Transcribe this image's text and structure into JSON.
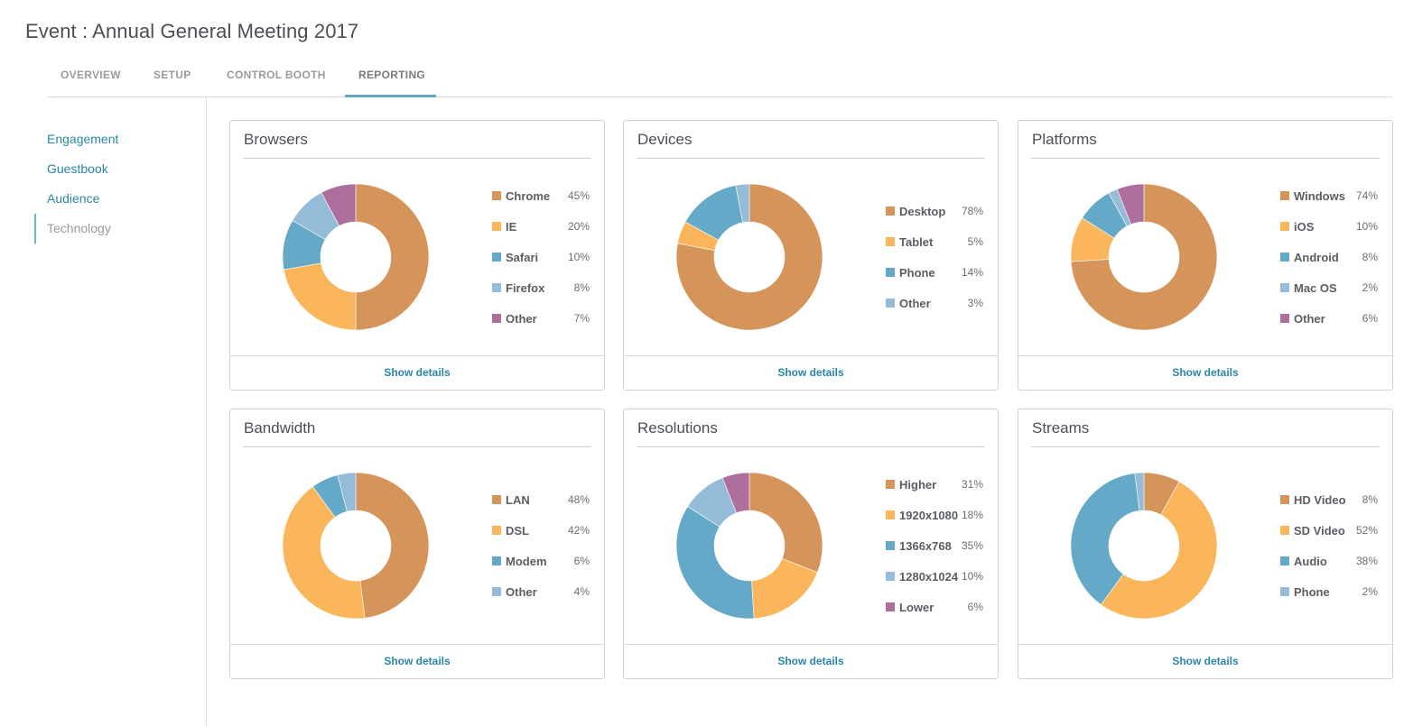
{
  "event_title": "Event : Annual General Meeting 2017",
  "tabs": [
    {
      "label": "OVERVIEW"
    },
    {
      "label": "SETUP"
    },
    {
      "label": "CONTROL BOOTH"
    },
    {
      "label": "REPORTING"
    }
  ],
  "active_tab": "REPORTING",
  "sidebar": {
    "items": [
      {
        "label": "Engagement"
      },
      {
        "label": "Guestbook"
      },
      {
        "label": "Audience"
      },
      {
        "label": "Technology"
      }
    ],
    "active": "Technology"
  },
  "show_details_label": "Show details",
  "colors": {
    "accent": "#2a86a8",
    "orange": "#d4945a",
    "yellow": "#fbb55a",
    "blue": "#65a9c8",
    "lightblue": "#94bbd8",
    "purple": "#ad6f9b"
  },
  "chart_data": [
    {
      "type": "pie",
      "title": "Browsers",
      "categories": [
        "Chrome",
        "IE",
        "Safari",
        "Firefox",
        "Other"
      ],
      "values": [
        45,
        20,
        10,
        8,
        7
      ],
      "labels": [
        "45%",
        "20%",
        "10%",
        "8%",
        "7%"
      ],
      "colors": [
        "#d4945a",
        "#fbb55a",
        "#65a9c8",
        "#94bbd8",
        "#ad6f9b"
      ],
      "donut": true
    },
    {
      "type": "pie",
      "title": "Devices",
      "categories": [
        "Desktop",
        "Tablet",
        "Phone",
        "Other"
      ],
      "values": [
        78,
        5,
        14,
        3
      ],
      "labels": [
        "78%",
        "5%",
        "14%",
        "3%"
      ],
      "colors": [
        "#d4945a",
        "#fbb55a",
        "#65a9c8",
        "#94bbd8"
      ],
      "donut": true
    },
    {
      "type": "pie",
      "title": "Platforms",
      "categories": [
        "Windows",
        "iOS",
        "Android",
        "Mac OS",
        "Other"
      ],
      "values": [
        74,
        10,
        8,
        2,
        6
      ],
      "labels": [
        "74%",
        "10%",
        "8%",
        "2%",
        "6%"
      ],
      "colors": [
        "#d4945a",
        "#fbb55a",
        "#65a9c8",
        "#94bbd8",
        "#ad6f9b"
      ],
      "donut": true
    },
    {
      "type": "pie",
      "title": "Bandwidth",
      "categories": [
        "LAN",
        "DSL",
        "Modem",
        "Other"
      ],
      "values": [
        48,
        42,
        6,
        4
      ],
      "labels": [
        "48%",
        "42%",
        "6%",
        "4%"
      ],
      "colors": [
        "#d4945a",
        "#fbb55a",
        "#65a9c8",
        "#94bbd8"
      ],
      "donut": true
    },
    {
      "type": "pie",
      "title": "Resolutions",
      "categories": [
        "Higher",
        "1920x1080",
        "1366x768",
        "1280x1024",
        "Lower"
      ],
      "values": [
        31,
        18,
        35,
        10,
        6
      ],
      "labels": [
        "31%",
        "18%",
        "35%",
        "10%",
        "6%"
      ],
      "colors": [
        "#d4945a",
        "#fbb55a",
        "#65a9c8",
        "#94bbd8",
        "#ad6f9b"
      ],
      "donut": true
    },
    {
      "type": "pie",
      "title": "Streams",
      "categories": [
        "HD Video",
        "SD Video",
        "Audio",
        "Phone"
      ],
      "values": [
        8,
        52,
        38,
        2
      ],
      "labels": [
        "8%",
        "52%",
        "38%",
        "2%"
      ],
      "colors": [
        "#d4945a",
        "#fbb55a",
        "#65a9c8",
        "#94bbd8"
      ],
      "donut": true
    }
  ]
}
